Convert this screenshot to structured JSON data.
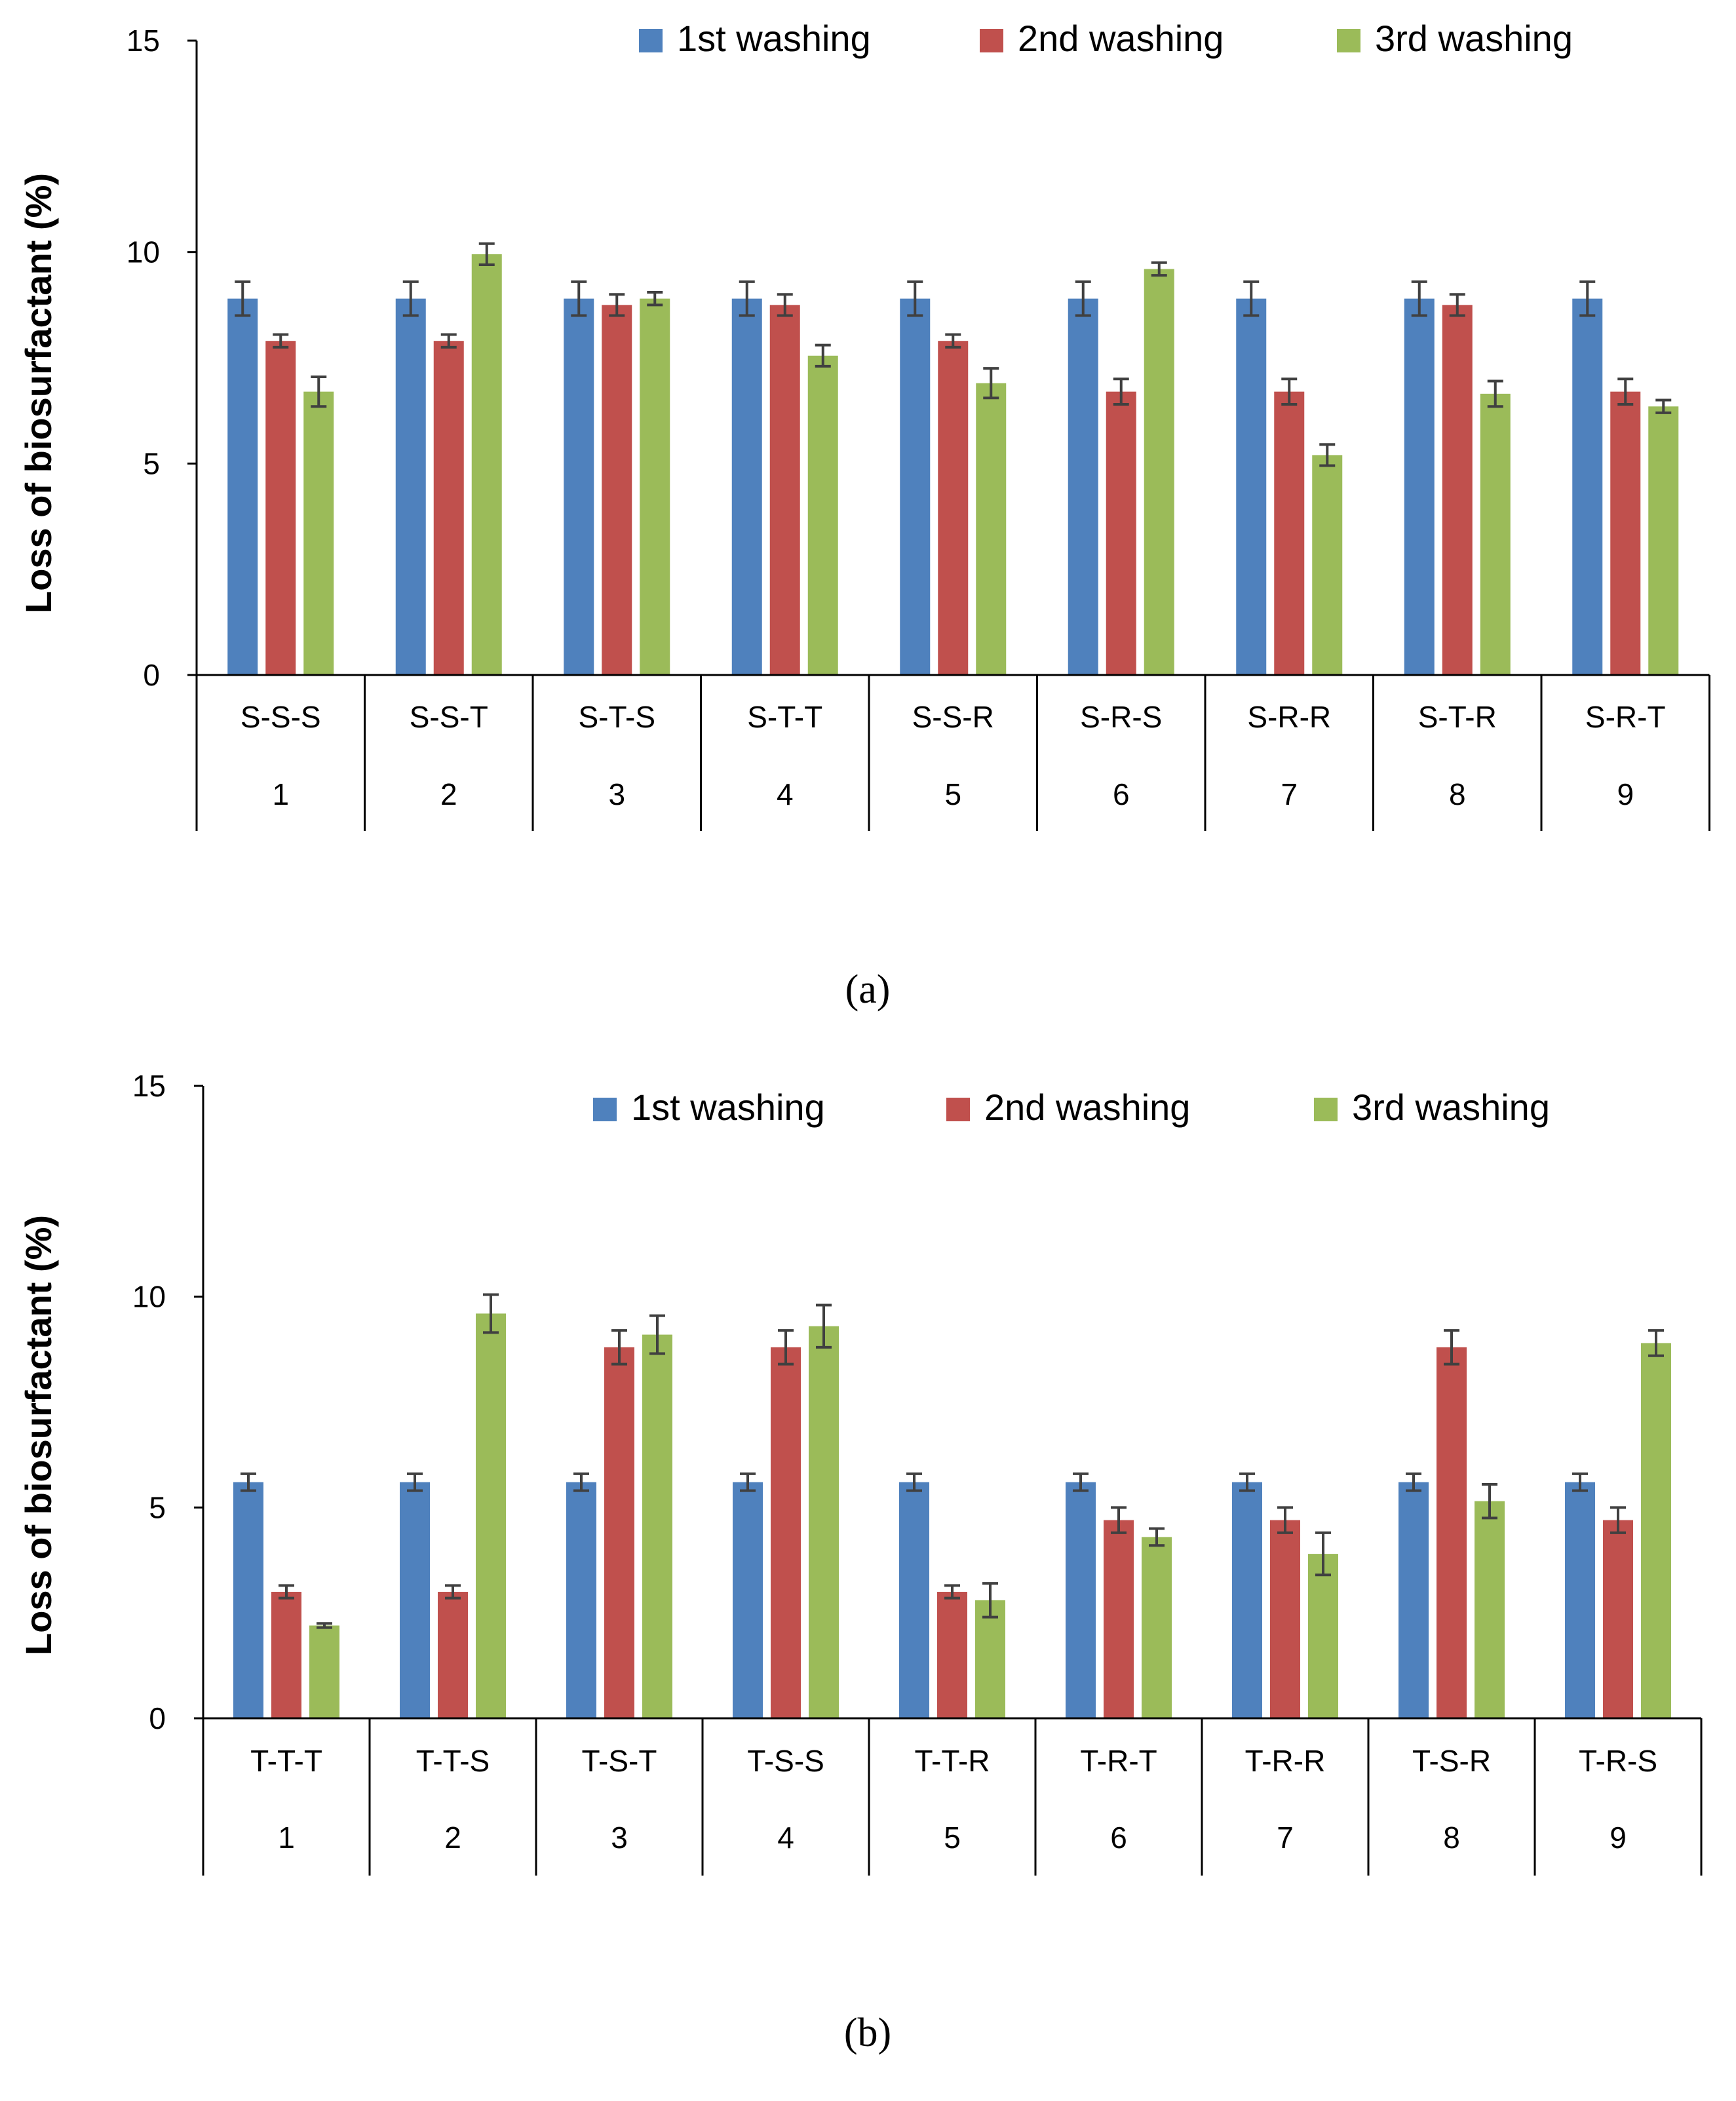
{
  "chart_data": [
    {
      "type": "bar",
      "panel_label": "(a)",
      "ylabel": "Loss of biosurfactant  (%)",
      "xlabel": "",
      "ylim": [
        0,
        15
      ],
      "yticks": [
        "0",
        "5",
        "10",
        "15"
      ],
      "grid": false,
      "legend_position": "top-right",
      "categories": [
        "S-S-S",
        "S-S-T",
        "S-T-S",
        "S-T-T",
        "S-S-R",
        "S-R-S",
        "S-R-R",
        "S-T-R",
        "S-R-T"
      ],
      "category_numbers": [
        "1",
        "2",
        "3",
        "4",
        "5",
        "6",
        "7",
        "8",
        "9"
      ],
      "series": [
        {
          "name": "1st washing",
          "color": "#4f81bd",
          "values": [
            8.9,
            8.9,
            8.9,
            8.9,
            8.9,
            8.9,
            8.9,
            8.9,
            8.9
          ],
          "errors": [
            0.4,
            0.4,
            0.4,
            0.4,
            0.4,
            0.4,
            0.4,
            0.4,
            0.4
          ]
        },
        {
          "name": "2nd washing",
          "color": "#c0504d",
          "values": [
            7.9,
            7.9,
            8.75,
            8.75,
            7.9,
            6.7,
            6.7,
            8.75,
            6.7
          ],
          "errors": [
            0.15,
            0.15,
            0.25,
            0.25,
            0.15,
            0.3,
            0.3,
            0.25,
            0.3
          ]
        },
        {
          "name": "3rd washing",
          "color": "#9bbb59",
          "values": [
            6.7,
            9.95,
            8.9,
            7.55,
            6.9,
            9.6,
            5.2,
            6.65,
            6.35
          ],
          "errors": [
            0.35,
            0.25,
            0.15,
            0.25,
            0.35,
            0.15,
            0.25,
            0.3,
            0.15
          ]
        }
      ]
    },
    {
      "type": "bar",
      "panel_label": "(b)",
      "ylabel": "Loss of biosurfactant  (%)",
      "xlabel": "",
      "ylim": [
        0,
        15
      ],
      "yticks": [
        "0",
        "5",
        "10",
        "15"
      ],
      "grid": false,
      "legend_position": "top-right",
      "categories": [
        "T-T-T",
        "T-T-S",
        "T-S-T",
        "T-S-S",
        "T-T-R",
        "T-R-T",
        "T-R-R",
        "T-S-R",
        "T-R-S"
      ],
      "category_numbers": [
        "1",
        "2",
        "3",
        "4",
        "5",
        "6",
        "7",
        "8",
        "9"
      ],
      "series": [
        {
          "name": "1st washing",
          "color": "#4f81bd",
          "values": [
            5.6,
            5.6,
            5.6,
            5.6,
            5.6,
            5.6,
            5.6,
            5.6,
            5.6
          ],
          "errors": [
            0.2,
            0.2,
            0.2,
            0.2,
            0.2,
            0.2,
            0.2,
            0.2,
            0.2
          ]
        },
        {
          "name": "2nd washing",
          "color": "#c0504d",
          "values": [
            3.0,
            3.0,
            8.8,
            8.8,
            3.0,
            4.7,
            4.7,
            8.8,
            4.7
          ],
          "errors": [
            0.15,
            0.15,
            0.4,
            0.4,
            0.15,
            0.3,
            0.3,
            0.4,
            0.3
          ]
        },
        {
          "name": "3rd washing",
          "color": "#9bbb59",
          "values": [
            2.2,
            9.6,
            9.1,
            9.3,
            2.8,
            4.3,
            3.9,
            5.15,
            8.9
          ],
          "errors": [
            0.05,
            0.45,
            0.45,
            0.5,
            0.4,
            0.2,
            0.5,
            0.4,
            0.3
          ]
        }
      ]
    }
  ]
}
